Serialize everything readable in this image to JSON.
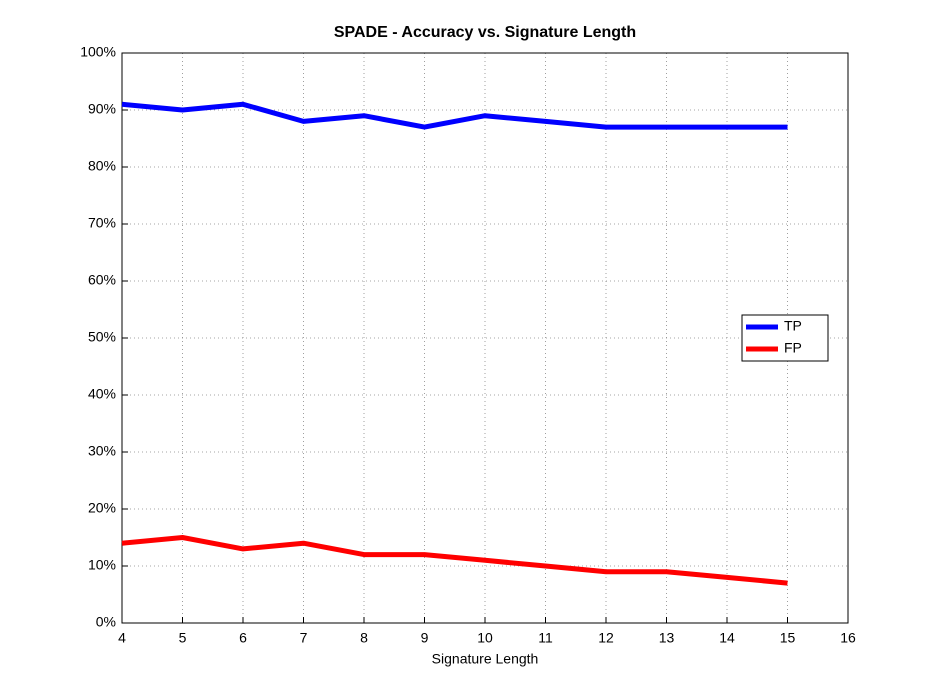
{
  "chart_data": {
    "type": "line",
    "title": "SPADE - Accuracy vs. Signature Length",
    "xlabel": "Signature Length",
    "x": [
      4,
      5,
      6,
      7,
      8,
      9,
      10,
      11,
      12,
      13,
      14,
      15
    ],
    "series": [
      {
        "name": "TP",
        "color": "#0000ff",
        "values": [
          91,
          90,
          91,
          88,
          89,
          87,
          89,
          88,
          87,
          87,
          87,
          87
        ]
      },
      {
        "name": "FP",
        "color": "#ff0000",
        "values": [
          14,
          15,
          13,
          14,
          12,
          12,
          11,
          10,
          9,
          9,
          8,
          7
        ]
      }
    ],
    "xlim": [
      4,
      16
    ],
    "xticks": [
      4,
      5,
      6,
      7,
      8,
      9,
      10,
      11,
      12,
      13,
      14,
      15,
      16
    ],
    "ylim": [
      0,
      100
    ],
    "yticks": [
      {
        "value": 0,
        "label": "0%"
      },
      {
        "value": 10,
        "label": "10%"
      },
      {
        "value": 20,
        "label": "20%"
      },
      {
        "value": 30,
        "label": "30%"
      },
      {
        "value": 40,
        "label": "40%"
      },
      {
        "value": 50,
        "label": "50%"
      },
      {
        "value": 60,
        "label": "60%"
      },
      {
        "value": 70,
        "label": "70%"
      },
      {
        "value": 80,
        "label": "80%"
      },
      {
        "value": 90,
        "label": "90%"
      },
      {
        "value": 100,
        "label": "100%"
      }
    ],
    "grid": true,
    "legend": "east"
  }
}
